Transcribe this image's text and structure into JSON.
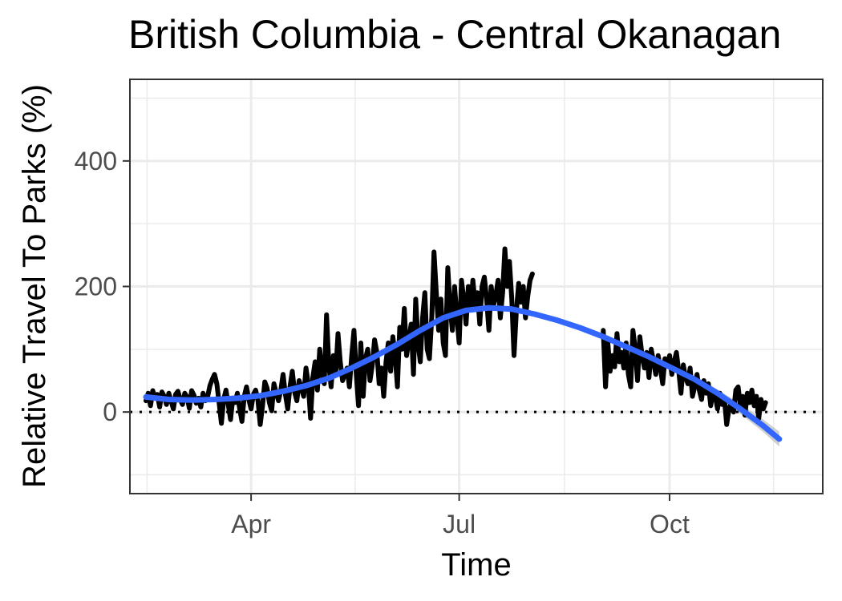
{
  "chart_data": {
    "type": "line",
    "title": "British Columbia - Central Okanagan",
    "xlabel": "Time",
    "ylabel": "Relative Travel To Parks (%)",
    "x_tick_labels": [
      {
        "label": "Apr",
        "date": "2020-04-01"
      },
      {
        "label": "Jul",
        "date": "2020-07-01"
      },
      {
        "label": "Oct",
        "date": "2020-10-01"
      }
    ],
    "y_ticks": [
      0,
      200,
      400
    ],
    "ylim": [
      -130,
      530
    ],
    "xlim": [
      "2020-02-08",
      "2020-12-07"
    ],
    "grid": true,
    "reference_line": {
      "y": 0,
      "style": "dotted",
      "color": "#000000"
    },
    "series": [
      {
        "style": "raw-line",
        "color": "#000000",
        "points": [
          [
            "2020-02-15",
            18
          ],
          [
            "2020-02-16",
            30
          ],
          [
            "2020-02-17",
            10
          ],
          [
            "2020-02-18",
            34
          ],
          [
            "2020-02-19",
            22
          ],
          [
            "2020-02-20",
            28
          ],
          [
            "2020-02-21",
            8
          ],
          [
            "2020-02-22",
            32
          ],
          [
            "2020-02-23",
            25
          ],
          [
            "2020-02-24",
            12
          ],
          [
            "2020-02-25",
            30
          ],
          [
            "2020-02-26",
            18
          ],
          [
            "2020-02-27",
            5
          ],
          [
            "2020-02-28",
            28
          ],
          [
            "2020-02-29",
            33
          ],
          [
            "2020-03-01",
            20
          ],
          [
            "2020-03-02",
            12
          ],
          [
            "2020-03-03",
            30
          ],
          [
            "2020-03-04",
            24
          ],
          [
            "2020-03-05",
            6
          ],
          [
            "2020-03-06",
            34
          ],
          [
            "2020-03-07",
            27
          ],
          [
            "2020-03-08",
            14
          ],
          [
            "2020-03-09",
            22
          ],
          [
            "2020-03-10",
            8
          ],
          [
            "2020-03-11",
            30
          ],
          [
            "2020-03-12",
            18
          ],
          [
            "2020-03-13",
            25
          ],
          [
            "2020-03-14",
            42
          ],
          [
            "2020-03-15",
            52
          ],
          [
            "2020-03-16",
            60
          ],
          [
            "2020-03-17",
            45
          ],
          [
            "2020-03-18",
            15
          ],
          [
            "2020-03-19",
            -18
          ],
          [
            "2020-03-20",
            20
          ],
          [
            "2020-03-21",
            35
          ],
          [
            "2020-03-22",
            12
          ],
          [
            "2020-03-23",
            -12
          ],
          [
            "2020-03-24",
            22
          ],
          [
            "2020-03-25",
            15
          ],
          [
            "2020-03-26",
            30
          ],
          [
            "2020-03-27",
            5
          ],
          [
            "2020-03-28",
            -15
          ],
          [
            "2020-03-29",
            25
          ],
          [
            "2020-03-30",
            40
          ],
          [
            "2020-03-31",
            20
          ],
          [
            "2020-04-01",
            5
          ],
          [
            "2020-04-02",
            28
          ],
          [
            "2020-04-03",
            35
          ],
          [
            "2020-04-04",
            18
          ],
          [
            "2020-04-05",
            -20
          ],
          [
            "2020-04-06",
            10
          ],
          [
            "2020-04-07",
            48
          ],
          [
            "2020-04-08",
            38
          ],
          [
            "2020-04-09",
            15
          ],
          [
            "2020-04-10",
            2
          ],
          [
            "2020-04-11",
            45
          ],
          [
            "2020-04-12",
            30
          ],
          [
            "2020-04-13",
            18
          ],
          [
            "2020-04-14",
            35
          ],
          [
            "2020-04-15",
            60
          ],
          [
            "2020-04-16",
            28
          ],
          [
            "2020-04-17",
            5
          ],
          [
            "2020-04-18",
            40
          ],
          [
            "2020-04-19",
            65
          ],
          [
            "2020-04-20",
            32
          ],
          [
            "2020-04-21",
            18
          ],
          [
            "2020-04-22",
            50
          ],
          [
            "2020-04-23",
            38
          ],
          [
            "2020-04-24",
            25
          ],
          [
            "2020-04-25",
            70
          ],
          [
            "2020-04-26",
            45
          ],
          [
            "2020-04-27",
            -10
          ],
          [
            "2020-04-28",
            55
          ],
          [
            "2020-04-29",
            80
          ],
          [
            "2020-04-30",
            35
          ],
          [
            "2020-05-01",
            100
          ],
          [
            "2020-05-02",
            65
          ],
          [
            "2020-05-03",
            45
          ],
          [
            "2020-05-04",
            155
          ],
          [
            "2020-05-05",
            75
          ],
          [
            "2020-05-06",
            40
          ],
          [
            "2020-05-07",
            90
          ],
          [
            "2020-05-08",
            60
          ],
          [
            "2020-05-09",
            125
          ],
          [
            "2020-05-10",
            80
          ],
          [
            "2020-05-11",
            50
          ],
          [
            "2020-05-12",
            60
          ],
          [
            "2020-05-13",
            70
          ],
          [
            "2020-05-14",
            40
          ],
          [
            "2020-05-15",
            90
          ],
          [
            "2020-05-16",
            130
          ],
          [
            "2020-05-17",
            60
          ],
          [
            "2020-05-18",
            10
          ],
          [
            "2020-05-19",
            110
          ],
          [
            "2020-05-20",
            25
          ],
          [
            "2020-05-21",
            85
          ],
          [
            "2020-05-22",
            100
          ],
          [
            "2020-05-23",
            50
          ],
          [
            "2020-05-24",
            75
          ],
          [
            "2020-05-25",
            115
          ],
          [
            "2020-05-26",
            95
          ],
          [
            "2020-05-27",
            45
          ],
          [
            "2020-05-28",
            70
          ],
          [
            "2020-05-29",
            25
          ],
          [
            "2020-05-30",
            80
          ],
          [
            "2020-05-31",
            110
          ],
          [
            "2020-06-01",
            65
          ],
          [
            "2020-06-02",
            120
          ],
          [
            "2020-06-03",
            90
          ],
          [
            "2020-06-04",
            40
          ],
          [
            "2020-06-05",
            135
          ],
          [
            "2020-06-06",
            100
          ],
          [
            "2020-06-07",
            165
          ],
          [
            "2020-06-08",
            90
          ],
          [
            "2020-06-09",
            115
          ],
          [
            "2020-06-10",
            140
          ],
          [
            "2020-06-11",
            60
          ],
          [
            "2020-06-12",
            180
          ],
          [
            "2020-06-13",
            110
          ],
          [
            "2020-06-14",
            80
          ],
          [
            "2020-06-15",
            150
          ],
          [
            "2020-06-16",
            190
          ],
          [
            "2020-06-17",
            100
          ],
          [
            "2020-06-18",
            85
          ],
          [
            "2020-06-19",
            150
          ],
          [
            "2020-06-20",
            255
          ],
          [
            "2020-06-21",
            190
          ],
          [
            "2020-06-22",
            130
          ],
          [
            "2020-06-23",
            180
          ],
          [
            "2020-06-24",
            110
          ],
          [
            "2020-06-25",
            90
          ],
          [
            "2020-06-26",
            230
          ],
          [
            "2020-06-27",
            170
          ],
          [
            "2020-06-28",
            130
          ],
          [
            "2020-06-29",
            200
          ],
          [
            "2020-06-30",
            150
          ],
          [
            "2020-07-01",
            110
          ],
          [
            "2020-07-02",
            210
          ],
          [
            "2020-07-03",
            180
          ],
          [
            "2020-07-04",
            140
          ],
          [
            "2020-07-05",
            200
          ],
          [
            "2020-07-06",
            165
          ],
          [
            "2020-07-07",
            210
          ],
          [
            "2020-07-08",
            170
          ],
          [
            "2020-07-09",
            190
          ],
          [
            "2020-07-10",
            140
          ],
          [
            "2020-07-11",
            200
          ],
          [
            "2020-07-12",
            215
          ],
          [
            "2020-07-13",
            180
          ],
          [
            "2020-07-14",
            130
          ],
          [
            "2020-07-15",
            200
          ],
          [
            "2020-07-16",
            170
          ],
          [
            "2020-07-17",
            185
          ],
          [
            "2020-07-18",
            210
          ],
          [
            "2020-07-19",
            150
          ],
          [
            "2020-07-20",
            190
          ],
          [
            "2020-07-21",
            260
          ],
          [
            "2020-07-22",
            200
          ],
          [
            "2020-07-23",
            240
          ],
          [
            "2020-07-24",
            180
          ],
          [
            "2020-07-25",
            90
          ],
          [
            "2020-07-26",
            160
          ],
          [
            "2020-07-27",
            205
          ],
          [
            "2020-07-28",
            175
          ],
          [
            "2020-07-29",
            200
          ],
          [
            "2020-07-30",
            150
          ],
          [
            "2020-07-31",
            185
          ],
          [
            "2020-08-01",
            210
          ],
          [
            "2020-08-02",
            220
          ]
        ]
      },
      {
        "style": "raw-line",
        "color": "#000000",
        "points": [
          [
            "2020-09-02",
            130
          ],
          [
            "2020-09-03",
            40
          ],
          [
            "2020-09-04",
            110
          ],
          [
            "2020-09-05",
            65
          ],
          [
            "2020-09-06",
            90
          ],
          [
            "2020-09-07",
            72
          ],
          [
            "2020-09-08",
            125
          ],
          [
            "2020-09-09",
            80
          ],
          [
            "2020-09-10",
            95
          ],
          [
            "2020-09-11",
            70
          ],
          [
            "2020-09-12",
            110
          ],
          [
            "2020-09-13",
            60
          ],
          [
            "2020-09-14",
            40
          ],
          [
            "2020-09-15",
            130
          ],
          [
            "2020-09-16",
            100
          ],
          [
            "2020-09-17",
            50
          ],
          [
            "2020-09-18",
            120
          ],
          [
            "2020-09-19",
            90
          ],
          [
            "2020-09-20",
            70
          ],
          [
            "2020-09-21",
            95
          ],
          [
            "2020-09-22",
            55
          ],
          [
            "2020-09-23",
            100
          ],
          [
            "2020-09-24",
            80
          ],
          [
            "2020-09-25",
            60
          ],
          [
            "2020-09-26",
            90
          ],
          [
            "2020-09-27",
            70
          ],
          [
            "2020-09-28",
            45
          ],
          [
            "2020-09-29",
            85
          ],
          [
            "2020-09-30",
            75
          ],
          [
            "2020-10-01",
            90
          ],
          [
            "2020-10-02",
            60
          ],
          [
            "2020-10-03",
            80
          ],
          [
            "2020-10-04",
            95
          ],
          [
            "2020-10-05",
            65
          ],
          [
            "2020-10-06",
            30
          ],
          [
            "2020-10-07",
            75
          ],
          [
            "2020-10-08",
            55
          ],
          [
            "2020-10-09",
            45
          ],
          [
            "2020-10-10",
            70
          ],
          [
            "2020-10-11",
            25
          ],
          [
            "2020-10-12",
            40
          ],
          [
            "2020-10-13",
            60
          ],
          [
            "2020-10-14",
            35
          ],
          [
            "2020-10-15",
            20
          ],
          [
            "2020-10-16",
            50
          ],
          [
            "2020-10-17",
            30
          ],
          [
            "2020-10-18",
            45
          ],
          [
            "2020-10-19",
            10
          ],
          [
            "2020-10-20",
            35
          ],
          [
            "2020-10-21",
            25
          ],
          [
            "2020-10-22",
            5
          ],
          [
            "2020-10-23",
            30
          ],
          [
            "2020-10-24",
            12
          ],
          [
            "2020-10-25",
            20
          ],
          [
            "2020-10-26",
            -20
          ],
          [
            "2020-10-27",
            5
          ],
          [
            "2020-10-28",
            15
          ],
          [
            "2020-10-29",
            0
          ],
          [
            "2020-10-30",
            35
          ],
          [
            "2020-10-31",
            40
          ],
          [
            "2020-11-01",
            10
          ],
          [
            "2020-11-02",
            25
          ],
          [
            "2020-11-03",
            -5
          ],
          [
            "2020-11-04",
            30
          ],
          [
            "2020-11-05",
            15
          ],
          [
            "2020-11-06",
            35
          ],
          [
            "2020-11-07",
            10
          ],
          [
            "2020-11-08",
            25
          ],
          [
            "2020-11-09",
            -10
          ],
          [
            "2020-11-10",
            20
          ],
          [
            "2020-11-11",
            5
          ],
          [
            "2020-11-12",
            15
          ]
        ]
      },
      {
        "style": "smooth",
        "color": "#3366FF",
        "ribbon_color": "#bbbbbb",
        "points": [
          [
            "2020-02-15",
            24,
            6
          ],
          [
            "2020-02-25",
            20,
            3
          ],
          [
            "2020-03-06",
            19,
            2
          ],
          [
            "2020-03-16",
            20,
            2
          ],
          [
            "2020-03-26",
            22,
            2
          ],
          [
            "2020-04-05",
            26,
            2
          ],
          [
            "2020-04-15",
            33,
            2
          ],
          [
            "2020-04-25",
            42,
            3
          ],
          [
            "2020-05-05",
            54,
            3
          ],
          [
            "2020-05-15",
            70,
            3
          ],
          [
            "2020-05-25",
            88,
            3
          ],
          [
            "2020-06-04",
            108,
            3
          ],
          [
            "2020-06-14",
            130,
            4
          ],
          [
            "2020-06-24",
            150,
            4
          ],
          [
            "2020-07-04",
            162,
            4
          ],
          [
            "2020-07-14",
            166,
            4
          ],
          [
            "2020-07-24",
            164,
            4
          ],
          [
            "2020-08-03",
            156,
            4
          ],
          [
            "2020-08-13",
            146,
            4
          ],
          [
            "2020-08-23",
            134,
            4
          ],
          [
            "2020-09-02",
            120,
            4
          ],
          [
            "2020-09-12",
            104,
            4
          ],
          [
            "2020-09-22",
            88,
            4
          ],
          [
            "2020-10-02",
            70,
            4
          ],
          [
            "2020-10-12",
            52,
            5
          ],
          [
            "2020-10-22",
            30,
            6
          ],
          [
            "2020-11-01",
            5,
            8
          ],
          [
            "2020-11-11",
            -22,
            10
          ],
          [
            "2020-11-18",
            -43,
            12
          ]
        ]
      }
    ]
  }
}
